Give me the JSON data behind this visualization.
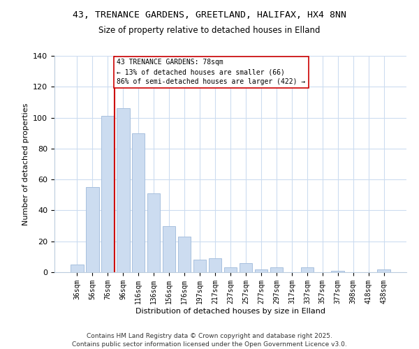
{
  "title": "43, TRENANCE GARDENS, GREETLAND, HALIFAX, HX4 8NN",
  "subtitle": "Size of property relative to detached houses in Elland",
  "xlabel": "Distribution of detached houses by size in Elland",
  "ylabel": "Number of detached properties",
  "bar_labels": [
    "36sqm",
    "56sqm",
    "76sqm",
    "96sqm",
    "116sqm",
    "136sqm",
    "156sqm",
    "176sqm",
    "197sqm",
    "217sqm",
    "237sqm",
    "257sqm",
    "277sqm",
    "297sqm",
    "317sqm",
    "337sqm",
    "357sqm",
    "377sqm",
    "398sqm",
    "418sqm",
    "438sqm"
  ],
  "bar_values": [
    5,
    55,
    101,
    106,
    90,
    51,
    30,
    23,
    8,
    9,
    3,
    6,
    2,
    3,
    0,
    3,
    0,
    1,
    0,
    0,
    2
  ],
  "bar_color": "#ccdcf0",
  "bar_edge_color": "#a8c0de",
  "ylim": [
    0,
    140
  ],
  "yticks": [
    0,
    20,
    40,
    60,
    80,
    100,
    120,
    140
  ],
  "vline_color": "#cc0000",
  "annotation_title": "43 TRENANCE GARDENS: 78sqm",
  "annotation_line1": "← 13% of detached houses are smaller (66)",
  "annotation_line2": "86% of semi-detached houses are larger (422) →",
  "annotation_box_color": "#ffffff",
  "annotation_box_edge": "#cc0000",
  "footer_line1": "Contains HM Land Registry data © Crown copyright and database right 2025.",
  "footer_line2": "Contains public sector information licensed under the Open Government Licence v3.0.",
  "background_color": "#ffffff",
  "grid_color": "#ccdcf0"
}
